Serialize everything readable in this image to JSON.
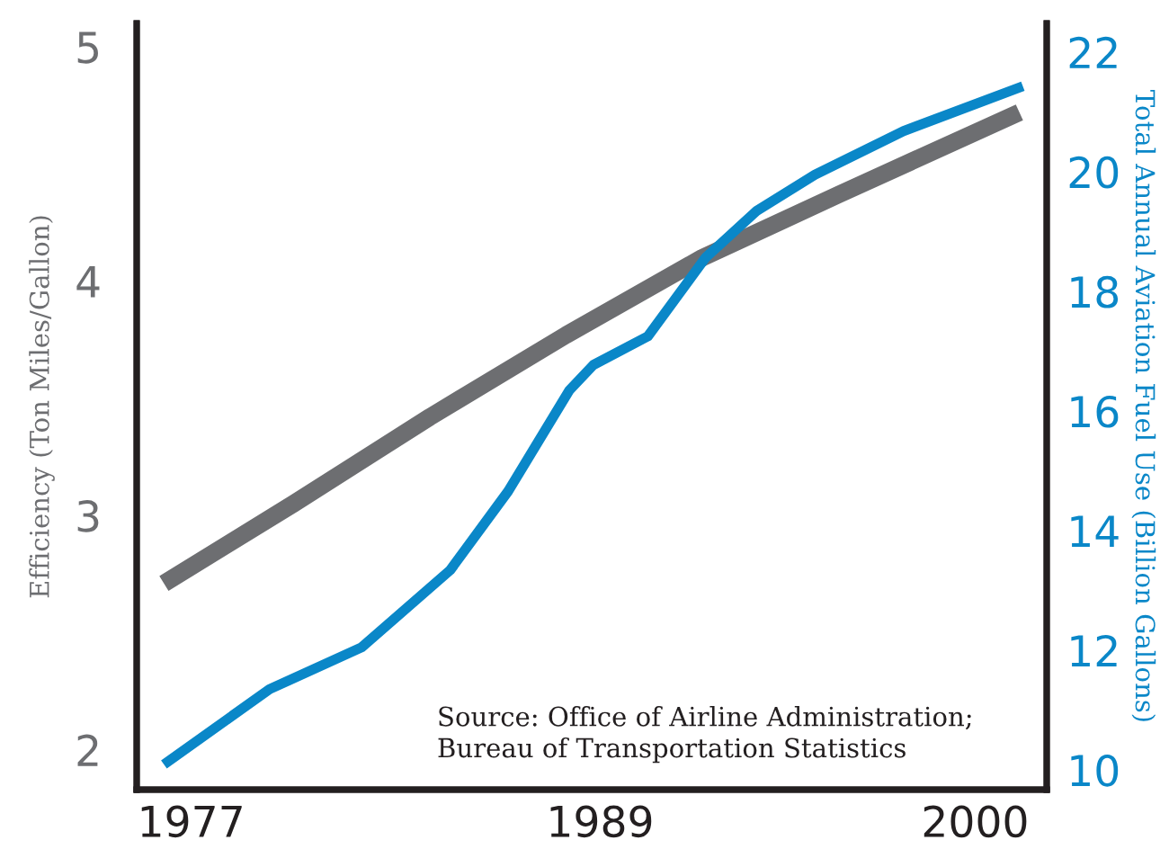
{
  "chart_data": {
    "type": "line",
    "ylabel": "Efficiency (Ton Miles/Gallon)",
    "y2label": "Total Annual Aviation Fuel Use (Billion Gallons)",
    "xlim": [
      1975.4,
      2002.1
    ],
    "xticks": [
      1977,
      1989,
      2000
    ],
    "ylim": [
      1.83,
      5.1
    ],
    "yticks": [
      2,
      3,
      4,
      5
    ],
    "y2lim": [
      9.67,
      22.48
    ],
    "y2ticks": [
      10,
      12,
      14,
      16,
      18,
      20,
      22
    ],
    "grid": false,
    "legend": false,
    "marker": "none",
    "line_style": "solid",
    "series": [
      {
        "color": "#6d6e71",
        "x": [
          1976.2,
          1980,
          1984,
          1988,
          1992,
          1996,
          2001.3
        ],
        "values": [
          2.71,
          3.05,
          3.42,
          3.77,
          4.1,
          4.37,
          4.72
        ]
      },
      {
        "color": "#0a87c8",
        "axis": "y2",
        "x": [
          1976.2,
          1979.3,
          1982.0,
          1984.6,
          1986.3,
          1988.1,
          1988.8,
          1990.4,
          1992.1,
          1993.6,
          1995.3,
          1997.9,
          2001.4
        ],
        "values": [
          10.09,
          11.35,
          12.05,
          13.34,
          14.66,
          16.35,
          16.77,
          17.25,
          18.57,
          19.35,
          19.95,
          20.68,
          21.43
        ]
      }
    ],
    "annotations": [
      "Source: Office of Airline Administration;\nBureau of Transportation Statistics"
    ]
  }
}
